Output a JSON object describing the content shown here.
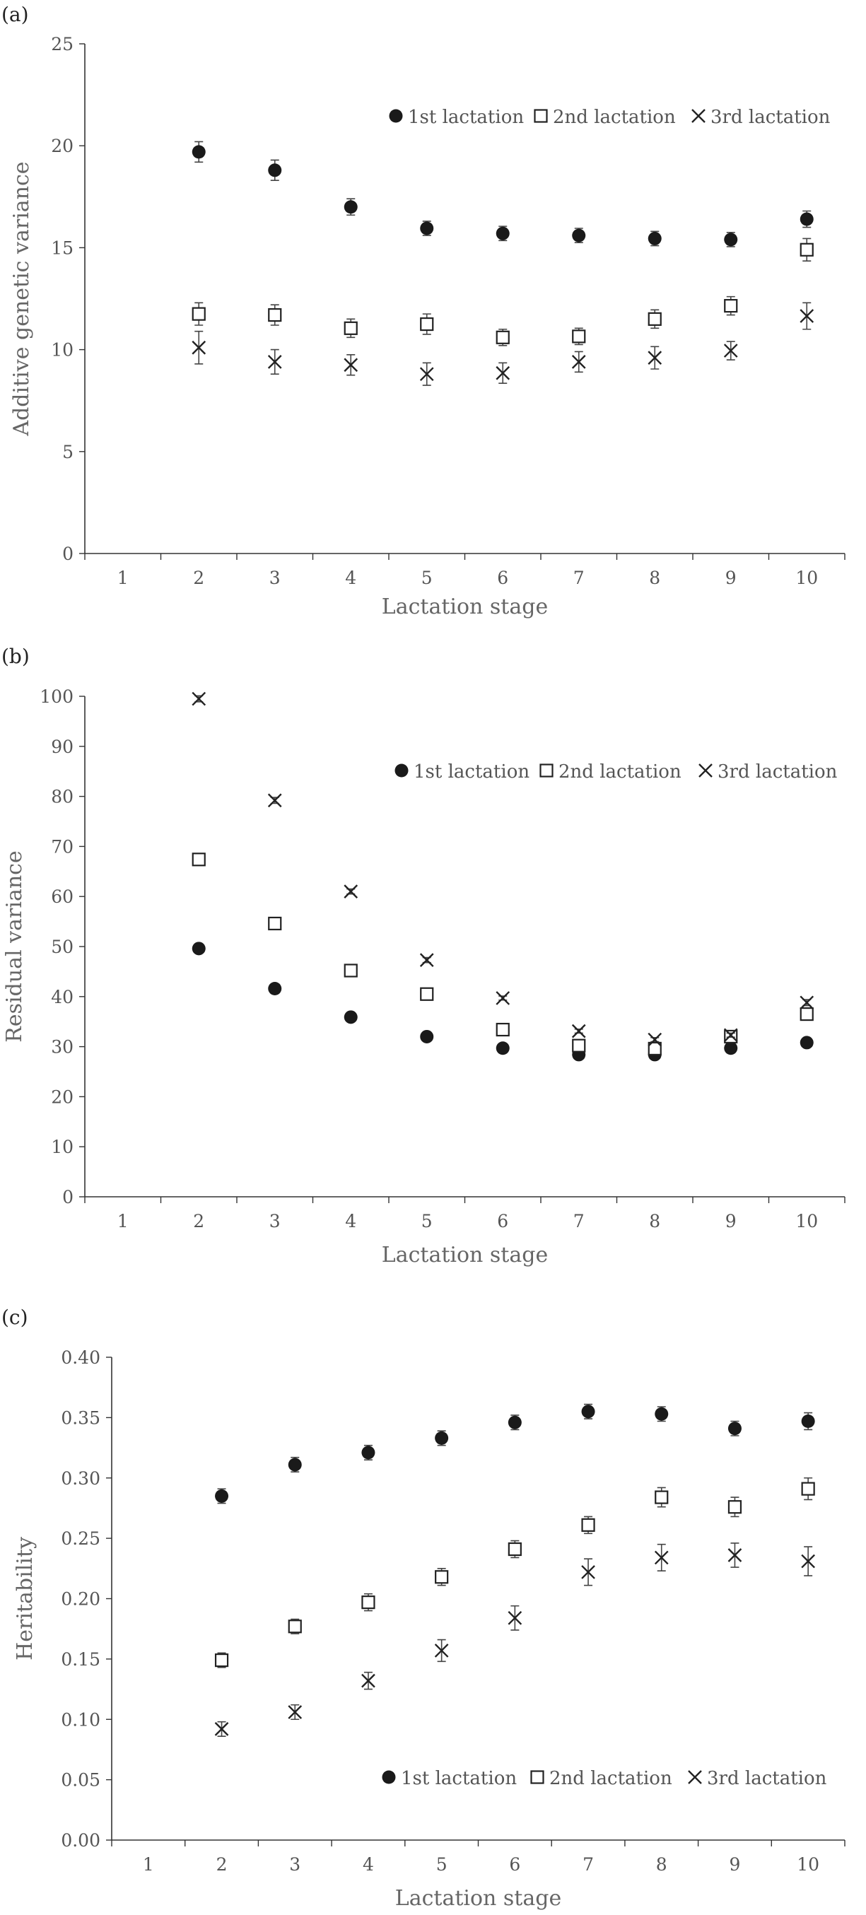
{
  "figure": {
    "colors": {
      "marker": "#1a1a1a",
      "axis": "#333333",
      "text": "#555555"
    }
  },
  "chart_data": [
    {
      "type": "scatter",
      "panel_label": "(a)",
      "xlabel": "Lactation stage",
      "ylabel": "Additive genetic variance",
      "x": [
        1,
        2,
        3,
        4,
        5,
        6,
        7,
        8,
        9,
        10
      ],
      "xlim": [
        0.5,
        10.5
      ],
      "ylim": [
        0,
        25
      ],
      "yticks": [
        0,
        5,
        10,
        15,
        20,
        25
      ],
      "ytick_labels": [
        "0",
        "5",
        "10",
        "15",
        "20",
        "25"
      ],
      "legend_position": "top-right",
      "grid": false,
      "series": [
        {
          "name": "1st lactation",
          "marker": "filled-circle",
          "x": [
            2,
            3,
            4,
            5,
            6,
            7,
            8,
            9,
            10
          ],
          "values": [
            19.7,
            18.8,
            17.0,
            15.95,
            15.7,
            15.6,
            15.45,
            15.4,
            16.4
          ],
          "errors": [
            0.5,
            0.5,
            0.4,
            0.35,
            0.35,
            0.35,
            0.35,
            0.35,
            0.4
          ]
        },
        {
          "name": "2nd lactation",
          "marker": "open-square",
          "x": [
            2,
            3,
            4,
            5,
            6,
            7,
            8,
            9,
            10
          ],
          "values": [
            11.75,
            11.7,
            11.05,
            11.25,
            10.6,
            10.65,
            11.5,
            12.15,
            14.9
          ],
          "errors": [
            0.55,
            0.5,
            0.45,
            0.5,
            0.4,
            0.4,
            0.45,
            0.45,
            0.55
          ]
        },
        {
          "name": "3rd lactation",
          "marker": "cross",
          "x": [
            2,
            3,
            4,
            5,
            6,
            7,
            8,
            9,
            10
          ],
          "values": [
            10.1,
            9.4,
            9.25,
            8.8,
            8.85,
            9.4,
            9.6,
            9.95,
            11.65
          ],
          "errors": [
            0.8,
            0.6,
            0.5,
            0.55,
            0.5,
            0.5,
            0.55,
            0.45,
            0.65
          ]
        }
      ]
    },
    {
      "type": "scatter",
      "panel_label": "(b)",
      "xlabel": "Lactation stage",
      "ylabel": "Residual variance",
      "x": [
        1,
        2,
        3,
        4,
        5,
        6,
        7,
        8,
        9,
        10
      ],
      "xlim": [
        0.5,
        10.5
      ],
      "ylim": [
        0,
        100
      ],
      "yticks": [
        0,
        10,
        20,
        30,
        40,
        50,
        60,
        70,
        80,
        90,
        100
      ],
      "ytick_labels": [
        "0",
        "10",
        "20",
        "30",
        "40",
        "50",
        "60",
        "70",
        "80",
        "90",
        "100"
      ],
      "legend_position": "top-right",
      "grid": false,
      "series": [
        {
          "name": "1st lactation",
          "marker": "filled-circle",
          "x": [
            2,
            3,
            4,
            5,
            6,
            7,
            8,
            9,
            10
          ],
          "values": [
            49.6,
            41.6,
            35.9,
            32.0,
            29.7,
            28.4,
            28.4,
            29.7,
            30.8
          ],
          "errors": [
            0.3,
            0.3,
            0.3,
            0.3,
            0.3,
            0.3,
            0.3,
            0.3,
            0.3
          ]
        },
        {
          "name": "2nd lactation",
          "marker": "open-square",
          "x": [
            2,
            3,
            4,
            5,
            6,
            7,
            8,
            9,
            10
          ],
          "values": [
            67.4,
            54.6,
            45.2,
            40.5,
            33.4,
            30.2,
            29.6,
            32.0,
            36.5
          ],
          "errors": [
            0.6,
            0.5,
            0.5,
            0.5,
            0.5,
            0.5,
            0.5,
            0.5,
            1.0
          ]
        },
        {
          "name": "3rd lactation",
          "marker": "cross",
          "x": [
            2,
            3,
            4,
            5,
            6,
            7,
            8,
            9,
            10
          ],
          "values": [
            99.5,
            79.2,
            61.0,
            47.3,
            39.7,
            33.1,
            31.4,
            32.3,
            38.8
          ],
          "errors": [
            0.6,
            0.6,
            0.5,
            0.5,
            0.4,
            0.4,
            0.4,
            0.4,
            0.6
          ]
        }
      ]
    },
    {
      "type": "scatter",
      "panel_label": "(c)",
      "xlabel": "Lactation stage",
      "ylabel": "Heritability",
      "x": [
        1,
        2,
        3,
        4,
        5,
        6,
        7,
        8,
        9,
        10
      ],
      "xlim": [
        0.5,
        10.5
      ],
      "ylim": [
        0,
        0.4
      ],
      "yticks": [
        0,
        0.05,
        0.1,
        0.15,
        0.2,
        0.25,
        0.3,
        0.35,
        0.4
      ],
      "ytick_labels": [
        "0.00",
        "0.05",
        "0.10",
        "0.15",
        "0.20",
        "0.25",
        "0.30",
        "0.35",
        "0.40"
      ],
      "legend_position": "bottom-right",
      "grid": false,
      "series": [
        {
          "name": "1st lactation",
          "marker": "filled-circle",
          "x": [
            2,
            3,
            4,
            5,
            6,
            7,
            8,
            9,
            10
          ],
          "values": [
            0.285,
            0.311,
            0.321,
            0.333,
            0.346,
            0.355,
            0.353,
            0.341,
            0.347
          ],
          "errors": [
            0.006,
            0.006,
            0.006,
            0.006,
            0.006,
            0.006,
            0.006,
            0.006,
            0.007
          ]
        },
        {
          "name": "2nd lactation",
          "marker": "open-square",
          "x": [
            2,
            3,
            4,
            5,
            6,
            7,
            8,
            9,
            10
          ],
          "values": [
            0.149,
            0.177,
            0.197,
            0.218,
            0.241,
            0.261,
            0.284,
            0.276,
            0.291
          ],
          "errors": [
            0.006,
            0.006,
            0.007,
            0.007,
            0.007,
            0.007,
            0.008,
            0.008,
            0.009
          ]
        },
        {
          "name": "3rd lactation",
          "marker": "cross",
          "x": [
            2,
            3,
            4,
            5,
            6,
            7,
            8,
            9,
            10
          ],
          "values": [
            0.092,
            0.106,
            0.132,
            0.157,
            0.184,
            0.222,
            0.234,
            0.236,
            0.231
          ],
          "errors": [
            0.006,
            0.006,
            0.007,
            0.009,
            0.01,
            0.011,
            0.011,
            0.01,
            0.012
          ]
        }
      ]
    }
  ]
}
